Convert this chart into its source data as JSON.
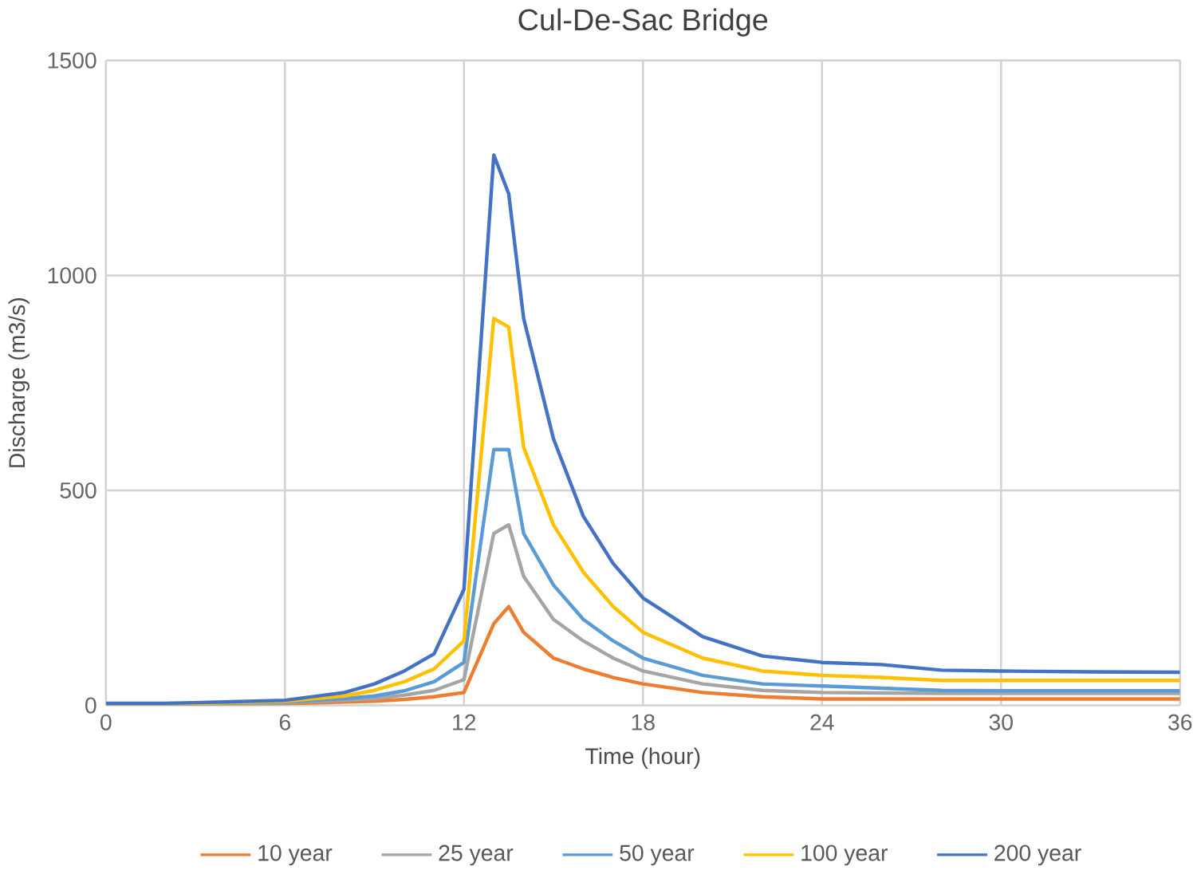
{
  "chart_data": {
    "type": "line",
    "title": "Cul-De-Sac Bridge",
    "xlabel": "Time (hour)",
    "ylabel": "Discharge (m3/s)",
    "xlim": [
      0,
      36
    ],
    "ylim": [
      0,
      1500
    ],
    "xticks": [
      0,
      6,
      12,
      18,
      24,
      30,
      36
    ],
    "yticks": [
      0,
      500,
      1000,
      1500
    ],
    "grid": true,
    "legend": "bottom",
    "marker": "none",
    "line_style": "solid",
    "x": [
      0,
      2,
      4,
      6,
      8,
      9,
      10,
      11,
      12,
      13,
      13.5,
      14,
      15,
      16,
      17,
      18,
      20,
      22,
      24,
      26,
      28,
      30,
      33,
      36
    ],
    "series": [
      {
        "name": "10 year",
        "color": "#ed7d31",
        "values": [
          2,
          2,
          3,
          4,
          8,
          10,
          14,
          20,
          30,
          190,
          230,
          170,
          110,
          85,
          65,
          50,
          30,
          20,
          15,
          15,
          15,
          15,
          15,
          15
        ]
      },
      {
        "name": "25 year",
        "color": "#a5a5a5",
        "values": [
          3,
          3,
          4,
          6,
          12,
          16,
          24,
          35,
          60,
          400,
          420,
          300,
          200,
          150,
          110,
          80,
          50,
          35,
          30,
          29,
          28,
          28,
          28,
          28
        ]
      },
      {
        "name": "50 year",
        "color": "#5b9bd5",
        "values": [
          3,
          3,
          5,
          8,
          16,
          22,
          34,
          55,
          100,
          595,
          595,
          400,
          280,
          200,
          150,
          110,
          70,
          50,
          45,
          40,
          35,
          34,
          34,
          34
        ]
      },
      {
        "name": "100 year",
        "color": "#ffc000",
        "values": [
          4,
          4,
          6,
          10,
          22,
          35,
          55,
          85,
          150,
          900,
          880,
          600,
          420,
          310,
          230,
          170,
          110,
          80,
          70,
          65,
          58,
          58,
          58,
          58
        ]
      },
      {
        "name": "200 year",
        "color": "#4472c4",
        "values": [
          5,
          5,
          8,
          12,
          30,
          50,
          80,
          120,
          270,
          1280,
          1190,
          900,
          620,
          440,
          330,
          250,
          160,
          115,
          100,
          95,
          82,
          80,
          78,
          77
        ]
      }
    ]
  }
}
